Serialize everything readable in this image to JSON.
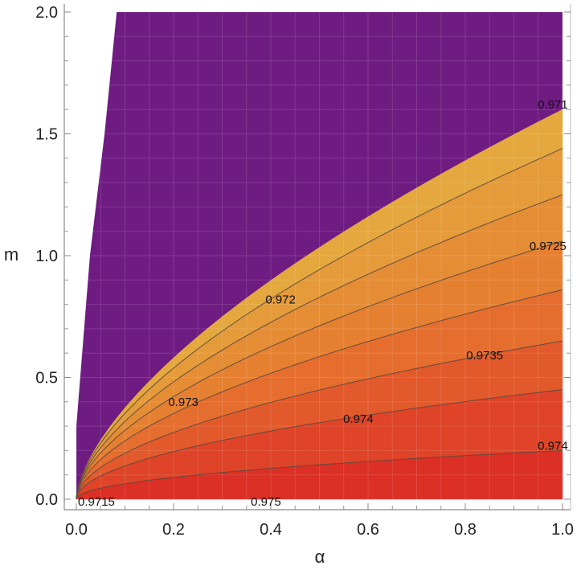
{
  "chart_data": {
    "type": "contour",
    "xlabel": "α",
    "ylabel": "m",
    "xlim": [
      0,
      1
    ],
    "ylim": [
      0,
      2
    ],
    "xticks": [
      "0.0",
      "0.2",
      "0.4",
      "0.6",
      "0.8",
      "1.0"
    ],
    "yticks": [
      "0.0",
      "0.5",
      "1.0",
      "1.5",
      "2.0"
    ],
    "grid": false,
    "colors": {
      "outside": "#6f1c82",
      "high": "#e4a83e",
      "mid": "#e6792f",
      "low": "#dc2f25"
    },
    "contours": [
      {
        "level": 0.971,
        "m_at_alpha_1": 1.6
      },
      {
        "level": 0.9715,
        "m_at_alpha_1": 1.44
      },
      {
        "level": 0.972,
        "m_at_alpha_1": 1.25
      },
      {
        "level": 0.9725,
        "m_at_alpha_1": 1.06
      },
      {
        "level": 0.973,
        "m_at_alpha_1": 0.86
      },
      {
        "level": 0.9735,
        "m_at_alpha_1": 0.65
      },
      {
        "level": 0.974,
        "m_at_alpha_1": 0.45
      },
      {
        "level": 0.9745,
        "m_at_alpha_1": 0.2
      },
      {
        "level": 0.975,
        "m_at_alpha_1": 0.0
      }
    ],
    "contour_labels": [
      {
        "text": "0.971",
        "alpha": 0.98,
        "m": 1.62
      },
      {
        "text": "0.9725",
        "alpha": 0.97,
        "m": 1.04
      },
      {
        "text": "0.972",
        "alpha": 0.42,
        "m": 0.82
      },
      {
        "text": "0.9735",
        "alpha": 0.84,
        "m": 0.59
      },
      {
        "text": "0.973",
        "alpha": 0.22,
        "m": 0.4
      },
      {
        "text": "0.974",
        "alpha": 0.58,
        "m": 0.33
      },
      {
        "text": "0.974",
        "alpha": 0.98,
        "m": 0.22
      },
      {
        "text": "0.9715",
        "alpha": -0.03,
        "m": -0.01
      },
      {
        "text": "0.975",
        "alpha": 0.39,
        "m": -0.01
      }
    ],
    "purple_region_left_edge": [
      [
        0.0,
        0.3
      ],
      [
        0.008,
        0.5
      ],
      [
        0.028,
        1.0
      ],
      [
        0.058,
        1.5
      ],
      [
        0.083,
        2.0
      ]
    ]
  }
}
